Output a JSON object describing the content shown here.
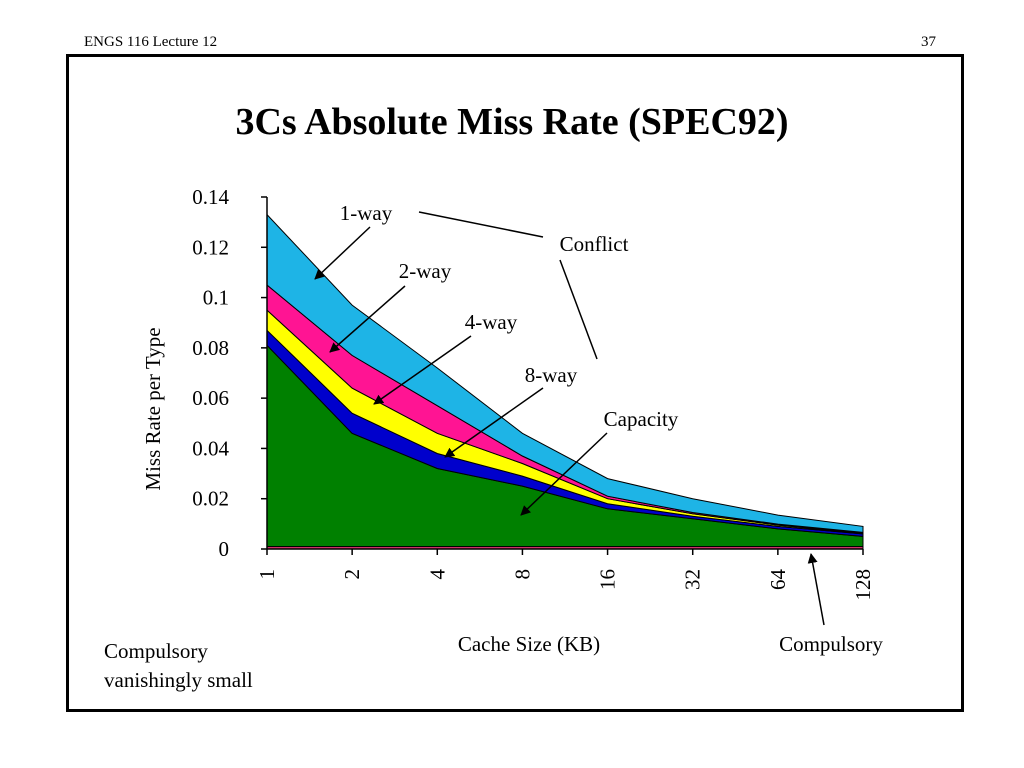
{
  "header": {
    "left": "ENGS 116  Lecture 12",
    "right": "37"
  },
  "chart_data": {
    "type": "area",
    "title": "3Cs Absolute Miss Rate (SPEC92)",
    "xlabel": "Cache Size (KB)",
    "ylabel": "Miss Rate per Type",
    "categories": [
      "1",
      "2",
      "4",
      "8",
      "16",
      "32",
      "64",
      "128"
    ],
    "ylim": [
      0,
      0.14
    ],
    "yticks": [
      "0",
      "0.02",
      "0.04",
      "0.06",
      "0.08",
      "0.1",
      "0.12",
      "0.14"
    ],
    "grid": false,
    "stack_order": [
      "Compulsory",
      "Capacity",
      "8-way",
      "4-way",
      "2-way",
      "1-way"
    ],
    "series": [
      {
        "name": "Compulsory",
        "color": "#cc3366",
        "values": [
          0.001,
          0.001,
          0.001,
          0.001,
          0.001,
          0.001,
          0.001,
          0.001
        ]
      },
      {
        "name": "Capacity",
        "color": "#008000",
        "values": [
          0.08,
          0.045,
          0.031,
          0.024,
          0.015,
          0.011,
          0.007,
          0.004
        ]
      },
      {
        "name": "8-way",
        "color": "#0000cc",
        "values": [
          0.006,
          0.008,
          0.006,
          0.004,
          0.002,
          0.001,
          0.001,
          0.001
        ]
      },
      {
        "name": "4-way",
        "color": "#ffff00",
        "values": [
          0.008,
          0.01,
          0.008,
          0.005,
          0.002,
          0.001,
          0.0005,
          0.0003
        ]
      },
      {
        "name": "2-way",
        "color": "#ff1493",
        "values": [
          0.01,
          0.013,
          0.011,
          0.003,
          0.001,
          0.0005,
          0.0004,
          0.0003
        ]
      },
      {
        "name": "1-way",
        "color": "#1eb4e6",
        "values": [
          0.028,
          0.02,
          0.015,
          0.009,
          0.007,
          0.0055,
          0.0036,
          0.0024
        ]
      }
    ],
    "annotations": {
      "one_way": "1-way",
      "two_way": "2-way",
      "four_way": "4-way",
      "eight_way": "8-way",
      "conflict": "Conflict",
      "capacity": "Capacity",
      "compulsory": "Compulsory"
    }
  },
  "note": {
    "line1": "Compulsory",
    "line2": "vanishingly small"
  }
}
